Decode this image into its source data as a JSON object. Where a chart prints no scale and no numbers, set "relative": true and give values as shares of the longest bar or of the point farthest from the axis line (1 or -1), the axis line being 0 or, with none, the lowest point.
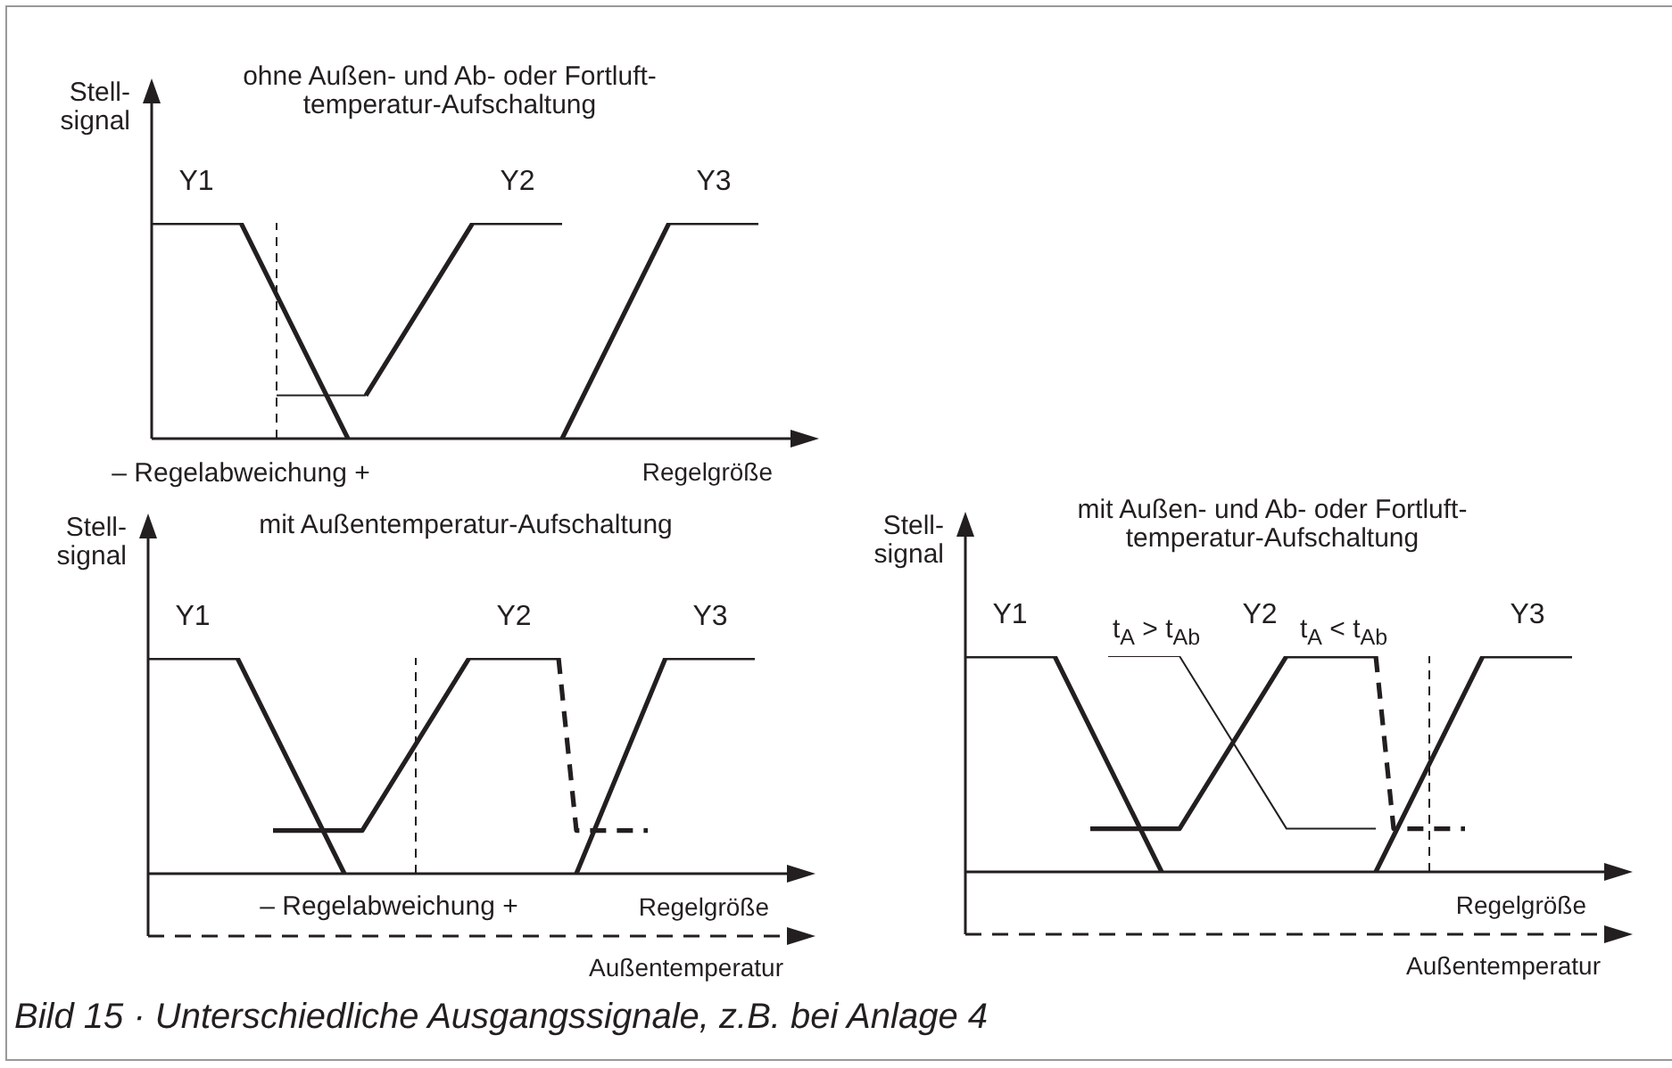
{
  "chart_data": [
    {
      "type": "line",
      "title": "ohne Außen- und Ab- oder Fortluft-\ntemperatur-Aufschaltung",
      "ylabel": "Stell-\nsignal",
      "xlabel": "Regelgröße",
      "relative": true,
      "annotations": [
        "– Regelabweichung +"
      ],
      "categories": [
        null,
        null,
        null,
        null,
        null,
        null,
        null,
        null,
        null,
        null,
        null,
        null,
        null,
        null,
        null,
        null,
        null,
        null,
        null,
        null,
        null,
        null,
        null,
        null,
        null,
        null,
        null,
        null,
        null,
        null,
        null,
        null,
        null,
        null,
        null,
        null,
        null
      ],
      "series": [
        {
          "name": "Y1",
          "color": "#231f20",
          "values": [
            1,
            null,
            null,
            null,
            null,
            1,
            null,
            null,
            null,
            null,
            null,
            0,
            null,
            null,
            null,
            null,
            null,
            null,
            null,
            null,
            null,
            null,
            null,
            null,
            null,
            null,
            null,
            null,
            null,
            null,
            null,
            null,
            null,
            null,
            null,
            null,
            null
          ]
        },
        {
          "name": "Y2",
          "color": "#231f20",
          "values": [
            null,
            null,
            null,
            null,
            null,
            null,
            null,
            null,
            null,
            null,
            null,
            null,
            0.2,
            null,
            null,
            null,
            null,
            null,
            1,
            null,
            null,
            null,
            null,
            1,
            null,
            null,
            null,
            null,
            null,
            null,
            null,
            null,
            null,
            null,
            null,
            null,
            null
          ]
        },
        {
          "color": "#231f20",
          "values": [
            null,
            null,
            null,
            null,
            null,
            null,
            null,
            0.2,
            null,
            null,
            null,
            null,
            0.2,
            null,
            null,
            null,
            null,
            null,
            null,
            null,
            null,
            null,
            null,
            null,
            null,
            null,
            null,
            null,
            null,
            null,
            null,
            null,
            null,
            null,
            null,
            null,
            null
          ]
        },
        {
          "name": "Y3",
          "color": "#231f20",
          "values": [
            null,
            null,
            null,
            null,
            null,
            null,
            null,
            null,
            null,
            null,
            null,
            null,
            null,
            null,
            null,
            null,
            null,
            null,
            null,
            null,
            null,
            null,
            null,
            0,
            null,
            null,
            null,
            null,
            null,
            1,
            null,
            null,
            null,
            null,
            1,
            null,
            null
          ]
        }
      ]
    },
    {
      "type": "line",
      "title": "mit Außentemperatur-Aufschaltung",
      "ylabel": "Stell-\nsignal",
      "xlabel": "Regelgröße",
      "x2label": "Außentemperatur",
      "relative": true,
      "annotations": [
        "– Regelabweichung +"
      ],
      "categories": [
        null,
        null,
        null,
        null,
        null,
        null,
        null,
        null,
        null,
        null,
        null,
        null,
        null,
        null,
        null,
        null,
        null,
        null,
        null,
        null,
        null,
        null,
        null,
        null,
        null,
        null,
        null,
        null,
        null,
        null,
        null,
        null,
        null,
        null,
        null,
        null,
        null
      ],
      "series": [
        {
          "name": "Y1",
          "color": "#231f20",
          "values": [
            1,
            null,
            null,
            null,
            null,
            1,
            null,
            null,
            null,
            null,
            null,
            0,
            null,
            null,
            null,
            null,
            null,
            null,
            null,
            null,
            null,
            null,
            null,
            null,
            null,
            null,
            null,
            null,
            null,
            null,
            null,
            null,
            null,
            null,
            null,
            null,
            null
          ]
        },
        {
          "name": "Y2",
          "color": "#231f20",
          "values": [
            null,
            null,
            null,
            null,
            null,
            null,
            null,
            0.2,
            null,
            null,
            null,
            null,
            0.2,
            null,
            null,
            null,
            null,
            null,
            1,
            null,
            null,
            null,
            null,
            1,
            null,
            null,
            null,
            null,
            null,
            null,
            null,
            null,
            null,
            null,
            null,
            null,
            null
          ]
        },
        {
          "color": "#231f20",
          "line_style": "dashed",
          "values": [
            null,
            null,
            null,
            null,
            null,
            null,
            null,
            null,
            null,
            null,
            null,
            null,
            null,
            null,
            null,
            null,
            null,
            null,
            null,
            null,
            null,
            null,
            null,
            1,
            0.2,
            null,
            null,
            null,
            0.2,
            null,
            null,
            null,
            null,
            null,
            null,
            null,
            null
          ]
        },
        {
          "name": "Y3",
          "color": "#231f20",
          "values": [
            null,
            null,
            null,
            null,
            null,
            null,
            null,
            null,
            null,
            null,
            null,
            null,
            null,
            null,
            null,
            null,
            null,
            null,
            null,
            null,
            null,
            null,
            null,
            null,
            0,
            null,
            null,
            null,
            null,
            1,
            null,
            null,
            null,
            null,
            1,
            null,
            null
          ]
        }
      ]
    },
    {
      "type": "line",
      "title": "mit Außen- und Ab- oder Fortluft-\ntemperatur-Aufschaltung",
      "ylabel": "Stell-\nsignal",
      "xlabel": "Regelgröße",
      "x2label": "Außentemperatur",
      "relative": true,
      "annotations": [
        "t$_{A}$ > t$_{Ab}$",
        "t$_{A}$ < t$_{Ab}$",
        "Bild 15 · Unterschiedliche Ausgangssignale, z.B. bei Anlage 4"
      ],
      "categories": [
        null,
        null,
        null,
        null,
        null,
        null,
        null,
        null,
        null,
        null,
        null,
        null,
        null,
        null,
        null,
        null,
        null,
        null,
        null,
        null,
        null,
        null,
        null,
        null,
        null,
        null,
        null,
        null,
        null,
        null,
        null,
        null,
        null,
        null,
        null,
        null,
        null
      ],
      "series": [
        {
          "name": "Y1",
          "color": "#231f20",
          "values": [
            1,
            null,
            null,
            null,
            null,
            1,
            null,
            null,
            null,
            null,
            null,
            0,
            null,
            null,
            null,
            null,
            null,
            null,
            null,
            null,
            null,
            null,
            null,
            null,
            null,
            null,
            null,
            null,
            null,
            null,
            null,
            null,
            null,
            null,
            null,
            null,
            null
          ]
        },
        {
          "name": "Y2",
          "color": "#231f20",
          "values": [
            null,
            null,
            null,
            null,
            null,
            null,
            null,
            0.2,
            null,
            null,
            null,
            null,
            0.2,
            null,
            null,
            null,
            null,
            null,
            1,
            null,
            null,
            null,
            null,
            1,
            null,
            null,
            null,
            null,
            null,
            null,
            null,
            null,
            null,
            null,
            null,
            null,
            null
          ]
        },
        {
          "color": "#231f20",
          "line_style": "dashed",
          "values": [
            null,
            null,
            null,
            null,
            null,
            null,
            null,
            null,
            null,
            null,
            null,
            null,
            null,
            null,
            null,
            null,
            null,
            null,
            null,
            null,
            null,
            null,
            null,
            1,
            0.2,
            null,
            null,
            null,
            0.2,
            null,
            null,
            null,
            null,
            null,
            null,
            null,
            null
          ]
        },
        {
          "color": "#231f20",
          "values": [
            null,
            null,
            null,
            null,
            null,
            null,
            null,
            null,
            1,
            null,
            null,
            null,
            1,
            null,
            null,
            null,
            null,
            null,
            0.2,
            null,
            null,
            null,
            null,
            0.2,
            null,
            null,
            null,
            null,
            null,
            null,
            null,
            null,
            null,
            null,
            null,
            null,
            null
          ]
        },
        {
          "name": "Y3",
          "color": "#231f20",
          "values": [
            null,
            null,
            null,
            null,
            null,
            null,
            null,
            null,
            null,
            null,
            null,
            null,
            null,
            null,
            null,
            null,
            null,
            null,
            null,
            null,
            null,
            null,
            null,
            0,
            null,
            null,
            null,
            null,
            null,
            1,
            null,
            null,
            null,
            null,
            1,
            null,
            null
          ]
        }
      ]
    }
  ]
}
